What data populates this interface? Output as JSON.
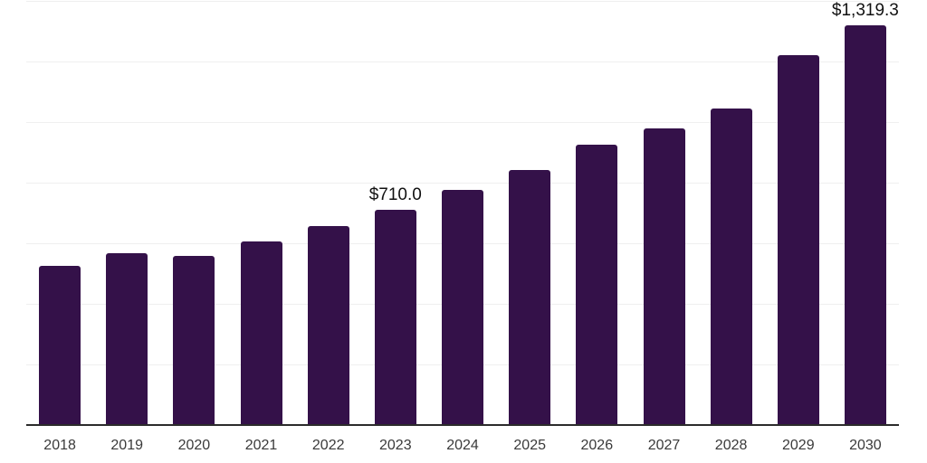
{
  "chart_data": {
    "type": "bar",
    "title": "",
    "xlabel": "",
    "ylabel": "",
    "categories": [
      "2018",
      "2019",
      "2020",
      "2021",
      "2022",
      "2023",
      "2024",
      "2025",
      "2026",
      "2027",
      "2028",
      "2029",
      "2030"
    ],
    "values": [
      526,
      567,
      558,
      606,
      657,
      710.0,
      775,
      841,
      926,
      978,
      1046,
      1220,
      1319.3
    ],
    "bar_labels": [
      "",
      "",
      "",
      "",
      "",
      "$710.0",
      "",
      "",
      "",
      "",
      "",
      "",
      "$1,319.3"
    ],
    "ylim": [
      0,
      1400
    ],
    "gridline_step": 200,
    "grid": "horizontal",
    "y_axis_tick_labels_visible": false,
    "legend_position": "none",
    "colors": {
      "bar": "#341149",
      "axis_line": "#2b2b2b",
      "gridline": "#efefef",
      "tick_label": "#3a3a3a",
      "data_label": "#111111",
      "background": "#ffffff"
    }
  }
}
